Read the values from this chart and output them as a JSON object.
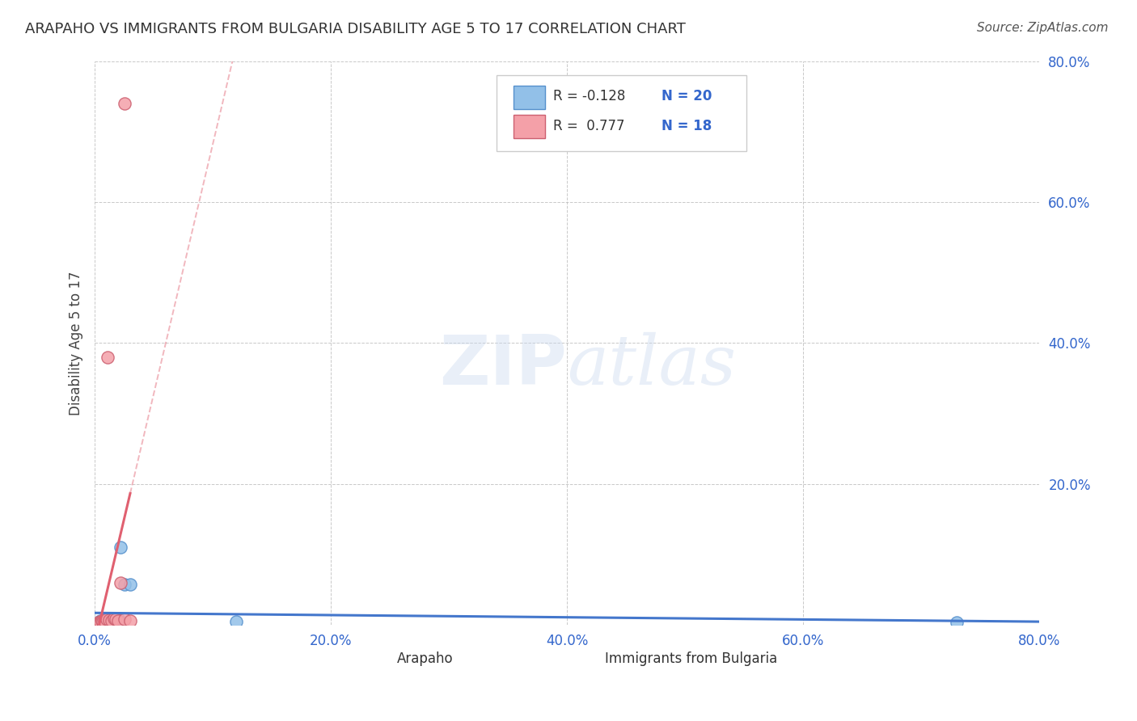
{
  "title": "ARAPAHO VS IMMIGRANTS FROM BULGARIA DISABILITY AGE 5 TO 17 CORRELATION CHART",
  "source": "Source: ZipAtlas.com",
  "ylabel": "Disability Age 5 to 17",
  "xlim": [
    0.0,
    0.8
  ],
  "ylim": [
    0.0,
    0.8
  ],
  "xticks": [
    0.0,
    0.2,
    0.4,
    0.6,
    0.8
  ],
  "yticks": [
    0.0,
    0.2,
    0.4,
    0.6,
    0.8
  ],
  "xticklabels": [
    "0.0%",
    "20.0%",
    "40.0%",
    "60.0%",
    "80.0%"
  ],
  "yticklabels": [
    "",
    "20.0%",
    "40.0%",
    "60.0%",
    "80.0%"
  ],
  "background_color": "#ffffff",
  "grid_color": "#bbbbbb",
  "arapaho_color": "#92C0E8",
  "arapaho_edge": "#5590CC",
  "bulgaria_color": "#F4A0A8",
  "bulgaria_edge": "#CC6070",
  "line_arapaho_color": "#4477CC",
  "line_bulgaria_color": "#E06070",
  "legend_items": [
    {
      "label": "R = -0.128",
      "n_label": "N = 20"
    },
    {
      "label": "R =  0.777",
      "n_label": "N = 18"
    }
  ],
  "arapaho_x": [
    0.003,
    0.005,
    0.006,
    0.007,
    0.008,
    0.009,
    0.01,
    0.011,
    0.012,
    0.013,
    0.014,
    0.015,
    0.016,
    0.018,
    0.02,
    0.022,
    0.025,
    0.03,
    0.12,
    0.73
  ],
  "arapaho_y": [
    0.004,
    0.006,
    0.004,
    0.005,
    0.006,
    0.004,
    0.005,
    0.007,
    0.006,
    0.005,
    0.007,
    0.006,
    0.008,
    0.01,
    0.009,
    0.11,
    0.058,
    0.058,
    0.005,
    0.004
  ],
  "bulgaria_x": [
    0.003,
    0.004,
    0.005,
    0.006,
    0.007,
    0.008,
    0.009,
    0.01,
    0.011,
    0.012,
    0.014,
    0.016,
    0.018,
    0.02,
    0.022,
    0.025,
    0.025,
    0.03
  ],
  "bulgaria_y": [
    0.004,
    0.005,
    0.004,
    0.006,
    0.005,
    0.006,
    0.004,
    0.008,
    0.38,
    0.007,
    0.006,
    0.01,
    0.008,
    0.006,
    0.06,
    0.008,
    0.74,
    0.006
  ]
}
